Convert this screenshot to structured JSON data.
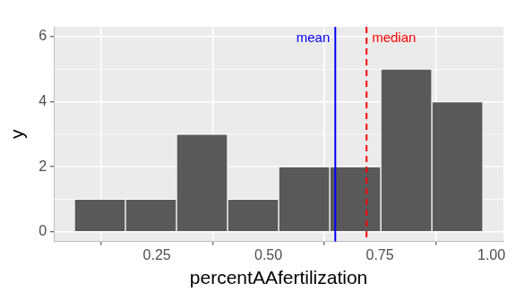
{
  "chart_data": {
    "type": "histogram",
    "bins": [
      0.065,
      0.1795,
      0.294,
      0.4085,
      0.523,
      0.6375,
      0.752,
      0.8665,
      0.981
    ],
    "values": [
      1,
      1,
      3,
      1,
      2,
      2,
      5,
      4
    ],
    "color": "#595959",
    "xlabel": "percentAAfertilization",
    "ylabel": "y",
    "xlim": [
      0.019,
      1.027
    ],
    "ylim": [
      -0.3,
      6.3
    ],
    "xticks": [
      0.25,
      {
        "value": 0.5,
        "label": "0.50"
      },
      0.75,
      {
        "value": 1,
        "label": "1.00"
      }
    ],
    "yticks": [
      0,
      2,
      4,
      6
    ],
    "grid": true,
    "annotations": [
      {
        "label": "mean",
        "value": 0.65,
        "color": "#0000ff",
        "line_style": "solid"
      },
      {
        "label": "median",
        "value": 0.72,
        "color": "#ff0000",
        "line_style": "dashed"
      }
    ]
  }
}
